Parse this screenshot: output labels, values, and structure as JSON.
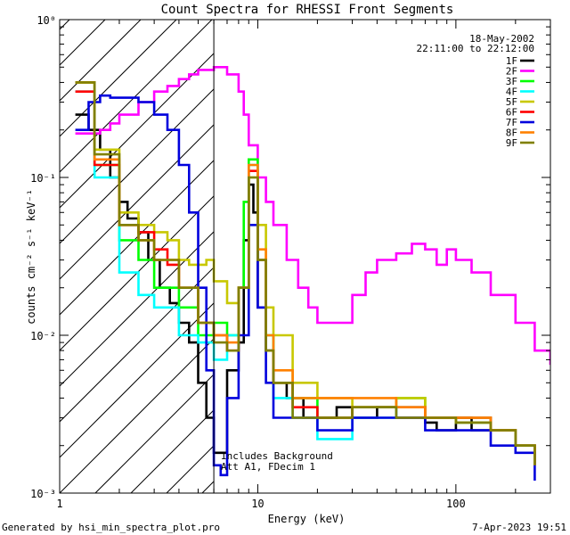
{
  "chart_data": {
    "type": "line",
    "title": "Count Spectra for RHESSI Front Segments",
    "xlabel": "Energy (keV)",
    "ylabel": "counts cm⁻² s⁻¹ keV⁻¹",
    "xscale": "log",
    "yscale": "log",
    "xlim": [
      1,
      300
    ],
    "ylim": [
      0.001,
      1
    ],
    "x_ticks": [
      {
        "value": 1,
        "label": "1"
      },
      {
        "value": 10,
        "label": "10"
      },
      {
        "value": 100,
        "label": "100"
      }
    ],
    "y_ticks": [
      {
        "value": 1,
        "label": "10⁰"
      },
      {
        "value": 0.1,
        "label": "10⁻¹"
      },
      {
        "value": 0.01,
        "label": "10⁻²"
      },
      {
        "value": 0.001,
        "label": "10⁻³"
      }
    ],
    "hatched_region_xmax": 6,
    "date": "18-May-2002",
    "time_range": "22:11:00 to 22:12:00",
    "annotation_lines": [
      "Includes Background",
      "Att A1, FDecim 1"
    ],
    "series": [
      {
        "name": "1F",
        "color": "#000000",
        "x": [
          1.2,
          1.4,
          1.6,
          1.8,
          2.0,
          2.2,
          2.5,
          2.8,
          3.2,
          3.6,
          4.0,
          4.5,
          5.0,
          5.5,
          6.0,
          7.0,
          8.0,
          8.5,
          9.0,
          9.5,
          10,
          11,
          12,
          14,
          17,
          20,
          25,
          30,
          40,
          50,
          60,
          70,
          80,
          100,
          120,
          150,
          200,
          250
        ],
        "y": [
          0.25,
          0.2,
          0.15,
          0.1,
          0.07,
          0.055,
          0.045,
          0.03,
          0.02,
          0.016,
          0.012,
          0.009,
          0.005,
          0.003,
          0.0018,
          0.006,
          0.009,
          0.04,
          0.09,
          0.06,
          0.015,
          0.008,
          0.005,
          0.004,
          0.003,
          0.003,
          0.0035,
          0.003,
          0.0035,
          0.003,
          0.003,
          0.0028,
          0.0025,
          0.003,
          0.0025,
          0.0025,
          0.002,
          0.0015
        ]
      },
      {
        "name": "2F",
        "color": "#ff00ff",
        "x": [
          1.2,
          1.4,
          1.6,
          1.8,
          2.0,
          2.5,
          3.0,
          3.5,
          4.0,
          4.5,
          5.0,
          6.0,
          7.0,
          8.0,
          8.5,
          9.0,
          10,
          11,
          12,
          14,
          16,
          18,
          20,
          25,
          30,
          35,
          40,
          50,
          60,
          70,
          80,
          90,
          100,
          120,
          150,
          200,
          250,
          300
        ],
        "y": [
          0.19,
          0.19,
          0.2,
          0.22,
          0.25,
          0.3,
          0.35,
          0.38,
          0.42,
          0.45,
          0.48,
          0.5,
          0.45,
          0.35,
          0.25,
          0.16,
          0.1,
          0.07,
          0.05,
          0.03,
          0.02,
          0.015,
          0.012,
          0.012,
          0.018,
          0.025,
          0.03,
          0.033,
          0.038,
          0.035,
          0.028,
          0.035,
          0.03,
          0.025,
          0.018,
          0.012,
          0.008,
          0.0065
        ]
      },
      {
        "name": "3F",
        "color": "#00ff00",
        "x": [
          1.2,
          1.5,
          2.0,
          2.5,
          3.0,
          4.0,
          5.0,
          6.0,
          7.0,
          8.0,
          8.5,
          9.0,
          10,
          11,
          12,
          15,
          20,
          30,
          50,
          70,
          100,
          150,
          200,
          250
        ],
        "y": [
          0.4,
          0.12,
          0.04,
          0.03,
          0.02,
          0.015,
          0.01,
          0.012,
          0.01,
          0.02,
          0.07,
          0.13,
          0.03,
          0.01,
          0.005,
          0.004,
          0.003,
          0.0035,
          0.004,
          0.003,
          0.003,
          0.0025,
          0.002,
          0.0015
        ]
      },
      {
        "name": "4F",
        "color": "#00ffff",
        "x": [
          1.2,
          1.5,
          2.0,
          2.5,
          3.0,
          4.0,
          5.0,
          6.0,
          7.0,
          8.0,
          9.0,
          10,
          11,
          12,
          15,
          20,
          30,
          50,
          70,
          100,
          150,
          200,
          250
        ],
        "y": [
          0.35,
          0.1,
          0.025,
          0.018,
          0.015,
          0.01,
          0.009,
          0.007,
          0.01,
          0.02,
          0.12,
          0.03,
          0.008,
          0.004,
          0.003,
          0.0022,
          0.003,
          0.0035,
          0.003,
          0.0028,
          0.0025,
          0.002,
          0.0015
        ]
      },
      {
        "name": "5F",
        "color": "#c8c800",
        "x": [
          1.2,
          1.5,
          2.0,
          2.5,
          3.0,
          3.5,
          4.0,
          4.5,
          5.0,
          5.5,
          6.0,
          7.0,
          8.0,
          9.0,
          10,
          11,
          12,
          15,
          20,
          30,
          50,
          70,
          100,
          150,
          200,
          250
        ],
        "y": [
          0.4,
          0.15,
          0.06,
          0.05,
          0.045,
          0.04,
          0.03,
          0.028,
          0.028,
          0.03,
          0.022,
          0.016,
          0.02,
          0.1,
          0.05,
          0.015,
          0.01,
          0.005,
          0.004,
          0.0035,
          0.004,
          0.003,
          0.0028,
          0.0025,
          0.002,
          0.0018
        ]
      },
      {
        "name": "6F",
        "color": "#ff0000",
        "x": [
          1.2,
          1.5,
          2.0,
          2.5,
          3.0,
          3.5,
          4.0,
          5.0,
          6.0,
          7.0,
          8.0,
          9.0,
          10,
          11,
          12,
          15,
          20,
          30,
          50,
          70,
          100,
          150,
          200,
          250
        ],
        "y": [
          0.35,
          0.12,
          0.05,
          0.045,
          0.035,
          0.028,
          0.02,
          0.012,
          0.01,
          0.008,
          0.02,
          0.11,
          0.03,
          0.008,
          0.005,
          0.0035,
          0.003,
          0.0035,
          0.0035,
          0.003,
          0.003,
          0.0025,
          0.002,
          0.0015
        ]
      },
      {
        "name": "7F",
        "color": "#0000dd",
        "x": [
          1.2,
          1.4,
          1.6,
          1.8,
          2.0,
          2.5,
          3.0,
          3.5,
          4.0,
          4.5,
          5.0,
          5.5,
          6.0,
          6.5,
          7.0,
          8.0,
          9.0,
          10,
          11,
          12,
          15,
          20,
          30,
          50,
          70,
          100,
          150,
          200,
          250
        ],
        "y": [
          0.2,
          0.3,
          0.33,
          0.32,
          0.32,
          0.3,
          0.25,
          0.2,
          0.12,
          0.06,
          0.02,
          0.006,
          0.0015,
          0.0013,
          0.004,
          0.01,
          0.05,
          0.015,
          0.005,
          0.003,
          0.003,
          0.0025,
          0.003,
          0.003,
          0.0025,
          0.0025,
          0.002,
          0.0018,
          0.0012
        ]
      },
      {
        "name": "8F",
        "color": "#ff8000",
        "x": [
          1.2,
          1.5,
          2.0,
          2.5,
          3.0,
          4.0,
          5.0,
          6.0,
          7.0,
          8.0,
          9.0,
          10,
          11,
          12,
          15,
          20,
          30,
          50,
          70,
          100,
          150,
          200,
          250
        ],
        "y": [
          0.4,
          0.13,
          0.05,
          0.04,
          0.03,
          0.02,
          0.012,
          0.01,
          0.009,
          0.02,
          0.12,
          0.035,
          0.01,
          0.006,
          0.004,
          0.004,
          0.004,
          0.0035,
          0.003,
          0.003,
          0.0025,
          0.002,
          0.0015
        ]
      },
      {
        "name": "9F",
        "color": "#808000",
        "x": [
          1.2,
          1.5,
          2.0,
          2.5,
          3.0,
          4.0,
          5.0,
          6.0,
          7.0,
          8.0,
          9.0,
          10,
          11,
          12,
          15,
          20,
          30,
          50,
          70,
          100,
          150,
          200,
          250
        ],
        "y": [
          0.4,
          0.14,
          0.05,
          0.04,
          0.03,
          0.02,
          0.012,
          0.009,
          0.008,
          0.02,
          0.1,
          0.03,
          0.008,
          0.005,
          0.003,
          0.003,
          0.0035,
          0.003,
          0.003,
          0.0028,
          0.0025,
          0.002,
          0.0015
        ]
      }
    ]
  },
  "footer": {
    "generated_by": "Generated by hsi_min_spectra_plot.pro",
    "timestamp": "7-Apr-2023 19:51"
  }
}
